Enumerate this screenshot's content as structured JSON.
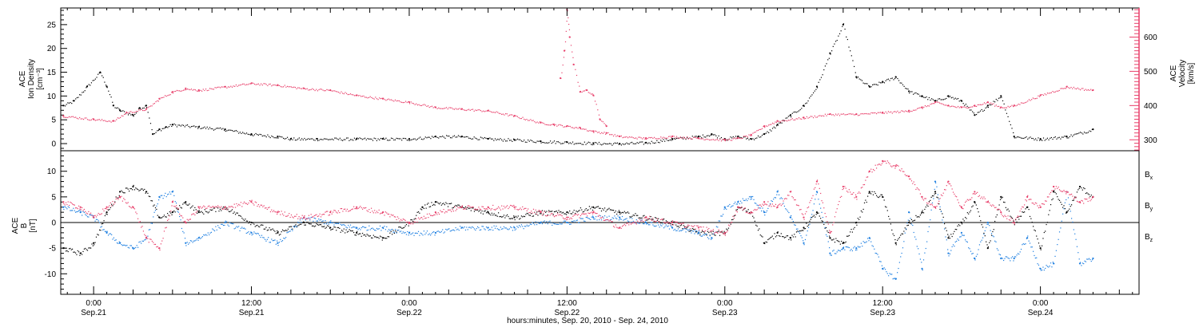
{
  "chart_data": [
    {
      "type": "scatter",
      "panel": "top",
      "ylabel_lines": [
        "ACE",
        "Ion Density",
        "[cm⁻³]"
      ],
      "y2label_lines": [
        "ACE",
        "Velocity",
        "[km/s]"
      ],
      "xlim": [
        -2.5,
        79.5
      ],
      "ylim": [
        -1.5,
        28.5
      ],
      "y2lim": [
        268,
        685
      ],
      "yticks": [
        0,
        5,
        10,
        15,
        20,
        25
      ],
      "y2ticks": [
        300,
        400,
        500,
        600
      ],
      "y2tick_labels": [
        "300",
        "400",
        "500",
        "600"
      ],
      "series": [
        {
          "name": "Ion Density",
          "axis": "left",
          "color": "#000000",
          "x": [
            -2.3,
            -1.5,
            -0.5,
            0.5,
            1.0,
            1.5,
            2.0,
            3.0,
            3.5,
            4.0,
            4.5,
            5.0,
            5.5,
            6.0,
            8.0,
            10.0,
            12.0,
            14.0,
            15.0,
            17.0,
            20.0,
            22.0,
            24.0,
            26.0,
            28.0,
            30.0,
            32.0,
            34.0,
            36.0,
            38.0,
            40.0,
            42.0,
            44.0,
            46.0,
            47.0,
            48.0,
            49.0,
            50.0,
            51.0,
            52.0,
            53.0,
            54.0,
            55.0,
            56.0,
            57.0,
            58.0,
            59.0,
            60.0,
            61.0,
            62.0,
            63.0,
            64.0,
            65.0,
            66.0,
            67.0,
            68.0,
            69.0,
            70.0,
            72.0,
            74.0,
            76.0
          ],
          "y": [
            8,
            9,
            12,
            15,
            12,
            8,
            7,
            6,
            7.5,
            8,
            2,
            3,
            3.5,
            4,
            3.5,
            3,
            2,
            1.5,
            1,
            1,
            1,
            1,
            1,
            1.5,
            1.5,
            1,
            0.8,
            0.5,
            0.3,
            0.1,
            0,
            0.2,
            1,
            1.5,
            2,
            1,
            1.5,
            1,
            2,
            4,
            6,
            8,
            12,
            19,
            25,
            14,
            12,
            13,
            14,
            11,
            10,
            9,
            10,
            9,
            6,
            8,
            10,
            1.5,
            1,
            1.5,
            3
          ],
          "gaps_after": [
            15.5
          ]
        },
        {
          "name": "Velocity",
          "axis": "right",
          "color": "#e83f6a",
          "x": [
            -2.3,
            0.0,
            1.5,
            2.5,
            4.0,
            5.0,
            6.0,
            7.0,
            8.0,
            10.0,
            12.0,
            14.0,
            16.0,
            18.0,
            20.0,
            22.0,
            24.0,
            26.0,
            28.0,
            30.0,
            32.0,
            34.0,
            35.0,
            36.0,
            37.0,
            38.0,
            39.0,
            40.0,
            42.0,
            44.0,
            46.0,
            48.0,
            49.0,
            50.0,
            51.0,
            52.0,
            54.0,
            56.0,
            58.0,
            60.0,
            62.0,
            63.0,
            64.0,
            65.0,
            66.0,
            67.0,
            68.0,
            69.0,
            70.0,
            72.0,
            74.0,
            76.0
          ],
          "y": [
            370,
            360,
            355,
            380,
            390,
            420,
            440,
            450,
            445,
            455,
            465,
            460,
            450,
            445,
            430,
            420,
            410,
            395,
            390,
            385,
            370,
            350,
            345,
            340,
            335,
            325,
            320,
            310,
            305,
            310,
            305,
            300,
            305,
            315,
            340,
            355,
            365,
            375,
            375,
            380,
            385,
            395,
            410,
            400,
            395,
            400,
            410,
            395,
            400,
            430,
            455,
            445
          ],
          "gaps_after": [
            15.5
          ]
        },
        {
          "name": "Velocity spike",
          "axis": "right",
          "color": "#e83f6a",
          "x": [
            35.5,
            35.8,
            36.0,
            36.2,
            36.5,
            37.0,
            37.5,
            38.0,
            38.5,
            39.0
          ],
          "y": [
            480,
            560,
            680,
            600,
            520,
            440,
            445,
            430,
            360,
            340
          ]
        }
      ]
    },
    {
      "type": "scatter",
      "panel": "bottom",
      "ylabel_lines": [
        "ACE",
        "B",
        "[nT]"
      ],
      "xlim": [
        -2.5,
        79.5
      ],
      "ylim": [
        -14,
        14
      ],
      "yticks": [
        -10,
        -5,
        0,
        5,
        10
      ],
      "xticks": [
        0,
        12,
        24,
        36,
        48,
        60,
        72
      ],
      "xtick_labels": [
        "0:00",
        "12:00",
        "0:00",
        "12:00",
        "0:00",
        "12:00",
        "0:00"
      ],
      "xtick_dates": [
        "Sep.21",
        "Sep.21",
        "Sep.22",
        "Sep.22",
        "Sep.23",
        "Sep.23",
        "Sep.24"
      ],
      "xlabel": "hours:minutes, Sep. 20, 2010 - Sep. 24, 2010",
      "legend": [
        {
          "label_main": "B",
          "label_sub": "x",
          "color": "#000000"
        },
        {
          "label_main": "B",
          "label_sub": "y",
          "color": "#1a7de0"
        },
        {
          "label_main": "B",
          "label_sub": "z",
          "color": "#e83f6a"
        }
      ],
      "series": [
        {
          "name": "Bx",
          "color": "#000000",
          "x": [
            -2.3,
            -1.0,
            0.0,
            1.0,
            2.0,
            3.0,
            4.0,
            5.0,
            6.0,
            7.0,
            8.0,
            10.0,
            12.0,
            14.0,
            16.0,
            18.0,
            20.0,
            22.0,
            24.0,
            25.0,
            26.0,
            28.0,
            30.0,
            32.0,
            34.0,
            36.0,
            38.0,
            40.0,
            42.0,
            44.0,
            46.0,
            48.0,
            49.0,
            50.0,
            51.0,
            52.0,
            53.0,
            54.0,
            55.0,
            56.0,
            57.0,
            58.0,
            59.0,
            60.0,
            61.0,
            62.0,
            63.0,
            64.0,
            65.0,
            66.0,
            67.0,
            68.0,
            69.0,
            70.0,
            71.0,
            72.0,
            73.0,
            74.0,
            75.0,
            76.0
          ],
          "y": [
            -5,
            -6,
            -4,
            2,
            6,
            7,
            6,
            1,
            2,
            4,
            2,
            3,
            0,
            -2,
            0,
            -1,
            -2,
            -3,
            0,
            3,
            4,
            3,
            2,
            1,
            2,
            2,
            3,
            2,
            1,
            0,
            -2,
            -2,
            3,
            2,
            -4,
            -2,
            -3,
            -1,
            2,
            -3,
            -4,
            0,
            6,
            5,
            -4,
            0,
            2,
            6,
            -3,
            0,
            4,
            -5,
            5,
            0,
            3,
            -5,
            6,
            2,
            7,
            5
          ]
        },
        {
          "name": "By",
          "color": "#1a7de0",
          "x": [
            -2.3,
            -1.0,
            0.0,
            1.0,
            2.0,
            3.0,
            4.0,
            5.0,
            6.0,
            7.0,
            8.0,
            10.0,
            12.0,
            14.0,
            16.0,
            18.0,
            20.0,
            22.0,
            24.0,
            26.0,
            28.0,
            30.0,
            32.0,
            34.0,
            36.0,
            38.0,
            40.0,
            42.0,
            44.0,
            46.0,
            47.0,
            48.0,
            49.0,
            50.0,
            51.0,
            52.0,
            53.0,
            54.0,
            55.0,
            56.0,
            57.0,
            58.0,
            59.0,
            60.0,
            61.0,
            62.0,
            63.0,
            64.0,
            65.0,
            66.0,
            67.0,
            68.0,
            69.0,
            70.0,
            71.0,
            72.0,
            73.0,
            74.0,
            75.0,
            76.0
          ],
          "y": [
            3,
            2,
            1,
            -2,
            -4,
            -5,
            -3,
            5,
            6,
            -4,
            -3,
            0,
            -2,
            -4,
            1,
            0,
            -1,
            -1,
            -2,
            -2,
            -1,
            -1,
            -1,
            0,
            0,
            1,
            1,
            0,
            -1,
            -2,
            -3,
            3,
            4,
            5,
            2,
            6,
            1,
            -4,
            6,
            -6,
            -5,
            -5,
            -3,
            -9,
            -11,
            2,
            -9,
            8,
            -6,
            -2,
            -7,
            0,
            -7,
            -7,
            -3,
            -9,
            -8,
            6,
            -8,
            -7
          ]
        },
        {
          "name": "Bz",
          "color": "#e83f6a",
          "x": [
            -2.3,
            -1.0,
            0.0,
            1.0,
            2.0,
            3.0,
            4.0,
            5.0,
            6.0,
            7.0,
            8.0,
            10.0,
            12.0,
            14.0,
            16.0,
            18.0,
            20.0,
            22.0,
            24.0,
            26.0,
            28.0,
            30.0,
            32.0,
            34.0,
            36.0,
            38.0,
            40.0,
            42.0,
            44.0,
            46.0,
            48.0,
            49.0,
            50.0,
            51.0,
            52.0,
            53.0,
            54.0,
            55.0,
            56.0,
            57.0,
            58.0,
            59.0,
            60.0,
            61.0,
            62.0,
            63.0,
            64.0,
            65.0,
            66.0,
            67.0,
            68.0,
            69.0,
            70.0,
            71.0,
            72.0,
            73.0,
            74.0,
            75.0,
            76.0
          ],
          "y": [
            4,
            3,
            1,
            3,
            5,
            3,
            -3,
            -5,
            4,
            0,
            3,
            3,
            4,
            2,
            1,
            2,
            3,
            2,
            0,
            2,
            3,
            3,
            3,
            2,
            1,
            2,
            -1,
            1,
            0,
            -1,
            -2,
            3,
            2,
            4,
            3,
            6,
            1,
            8,
            -2,
            7,
            5,
            10,
            12,
            11,
            9,
            5,
            3,
            8,
            3,
            6,
            4,
            2,
            0,
            5,
            3,
            7,
            6,
            4,
            5
          ]
        }
      ]
    }
  ]
}
